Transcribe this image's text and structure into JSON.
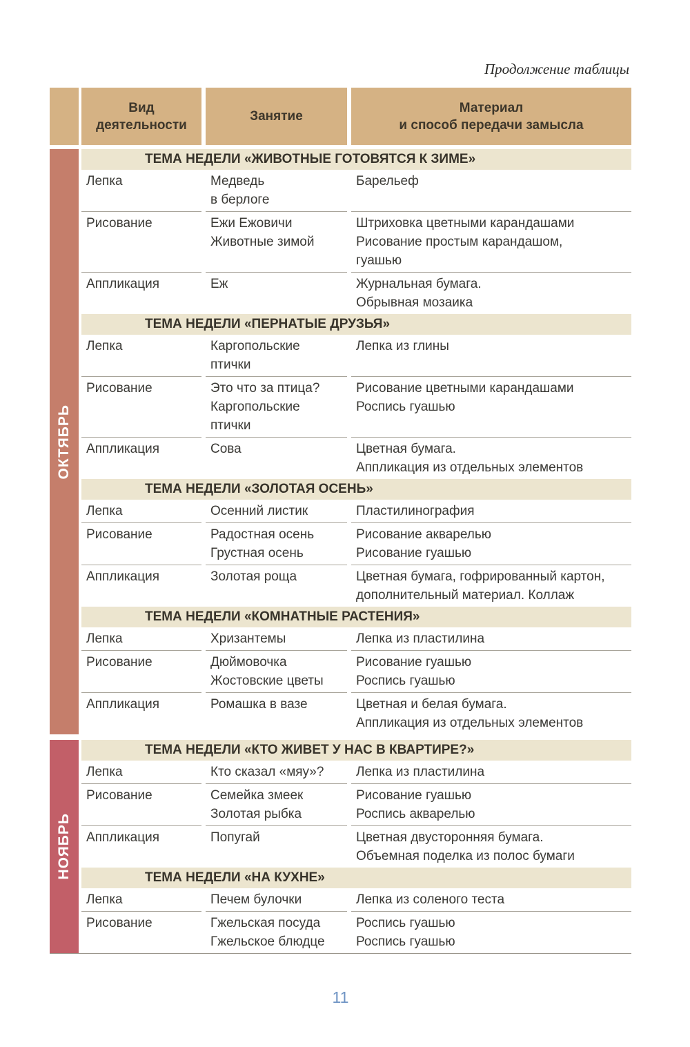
{
  "page": {
    "caption": "Продолжение таблицы",
    "page_number": "11"
  },
  "colors": {
    "header_bg": "#d5b284",
    "section_bg": "#ece5cf",
    "october_band": "#c57e6b",
    "november_band": "#c25f68",
    "page_number": "#6f94c4"
  },
  "table": {
    "header": {
      "activity_line1": "Вид",
      "activity_line2": "деятельности",
      "lesson": "Занятие",
      "material_line1": "Материал",
      "material_line2": "и способ передачи замысла"
    }
  },
  "months": [
    {
      "label": "ОКТЯБРЬ",
      "sections": [
        {
          "title": "ТЕМА НЕДЕЛИ «ЖИВОТНЫЕ ГОТОВЯТСЯ К ЗИМЕ»",
          "rows": [
            {
              "activity": "Лепка",
              "lesson": [
                "Медведь",
                "в берлоге"
              ],
              "material": [
                "Барельеф"
              ]
            },
            {
              "activity": "Рисование",
              "lesson": [
                "Ежи Ежовичи",
                "Животные зимой"
              ],
              "material": [
                "Штриховка цветными карандашами",
                "Рисование простым карандашом,",
                "гуашью"
              ]
            },
            {
              "activity": "Аппликация",
              "lesson": [
                "Еж"
              ],
              "material": [
                "Журнальная бумага.",
                "Обрывная мозаика"
              ]
            }
          ]
        },
        {
          "title": "ТЕМА НЕДЕЛИ «ПЕРНАТЫЕ ДРУЗЬЯ»",
          "rows": [
            {
              "activity": "Лепка",
              "lesson": [
                "Каргопольские",
                "птички"
              ],
              "material": [
                "Лепка из глины"
              ]
            },
            {
              "activity": "Рисование",
              "lesson": [
                "Это что за птица?",
                "Каргопольские",
                "птички"
              ],
              "material": [
                "Рисование цветными карандашами",
                "Роспись гуашью"
              ]
            },
            {
              "activity": "Аппликация",
              "lesson": [
                "Сова"
              ],
              "material": [
                "Цветная бумага.",
                "Аппликация из отдельных элементов"
              ]
            }
          ]
        },
        {
          "title": "ТЕМА НЕДЕЛИ «ЗОЛОТАЯ ОСЕНЬ»",
          "rows": [
            {
              "activity": "Лепка",
              "lesson": [
                "Осенний листик"
              ],
              "material": [
                "Пластилинография"
              ]
            },
            {
              "activity": "Рисование",
              "lesson": [
                "Радостная осень",
                "Грустная осень"
              ],
              "material": [
                "Рисование акварелью",
                "Рисование гуашью"
              ]
            },
            {
              "activity": "Аппликация",
              "lesson": [
                "Золотая роща"
              ],
              "material": [
                "Цветная бумага, гофрированный картон,",
                "дополнительный материал. Коллаж"
              ]
            }
          ]
        },
        {
          "title": "ТЕМА НЕДЕЛИ «КОМНАТНЫЕ РАСТЕНИЯ»",
          "rows": [
            {
              "activity": "Лепка",
              "lesson": [
                "Хризантемы"
              ],
              "material": [
                "Лепка из пластилина"
              ]
            },
            {
              "activity": "Рисование",
              "lesson": [
                "Дюймовочка",
                "Жостовские цветы"
              ],
              "material": [
                "Рисование гуашью",
                "Роспись гуашью"
              ]
            },
            {
              "activity": "Аппликация",
              "lesson": [
                "Ромашка в вазе"
              ],
              "material": [
                "Цветная и белая бумага.",
                "Аппликация из отдельных элементов"
              ]
            }
          ]
        }
      ]
    },
    {
      "label": "НОЯБРЬ",
      "sections": [
        {
          "title": "ТЕМА НЕДЕЛИ «КТО ЖИВЕТ У НАС В КВАРТИРЕ?»",
          "rows": [
            {
              "activity": "Лепка",
              "lesson": [
                "Кто сказал «мяу»?"
              ],
              "material": [
                "Лепка из пластилина"
              ]
            },
            {
              "activity": "Рисование",
              "lesson": [
                "Семейка змеек",
                "Золотая рыбка"
              ],
              "material": [
                "Рисование гуашью",
                "Роспись акварелью"
              ]
            },
            {
              "activity": "Аппликация",
              "lesson": [
                "Попугай"
              ],
              "material": [
                "Цветная двусторонняя бумага.",
                "Объемная поделка из полос бумаги"
              ]
            }
          ]
        },
        {
          "title": "ТЕМА НЕДЕЛИ «НА КУХНЕ»",
          "rows": [
            {
              "activity": "Лепка",
              "lesson": [
                "Печем булочки"
              ],
              "material": [
                "Лепка из соленого теста"
              ]
            },
            {
              "activity": "Рисование",
              "lesson": [
                "Гжельская посуда",
                "Гжельское блюдце"
              ],
              "material": [
                "Роспись гуашью",
                "Роспись гуашью"
              ]
            }
          ]
        }
      ]
    }
  ]
}
